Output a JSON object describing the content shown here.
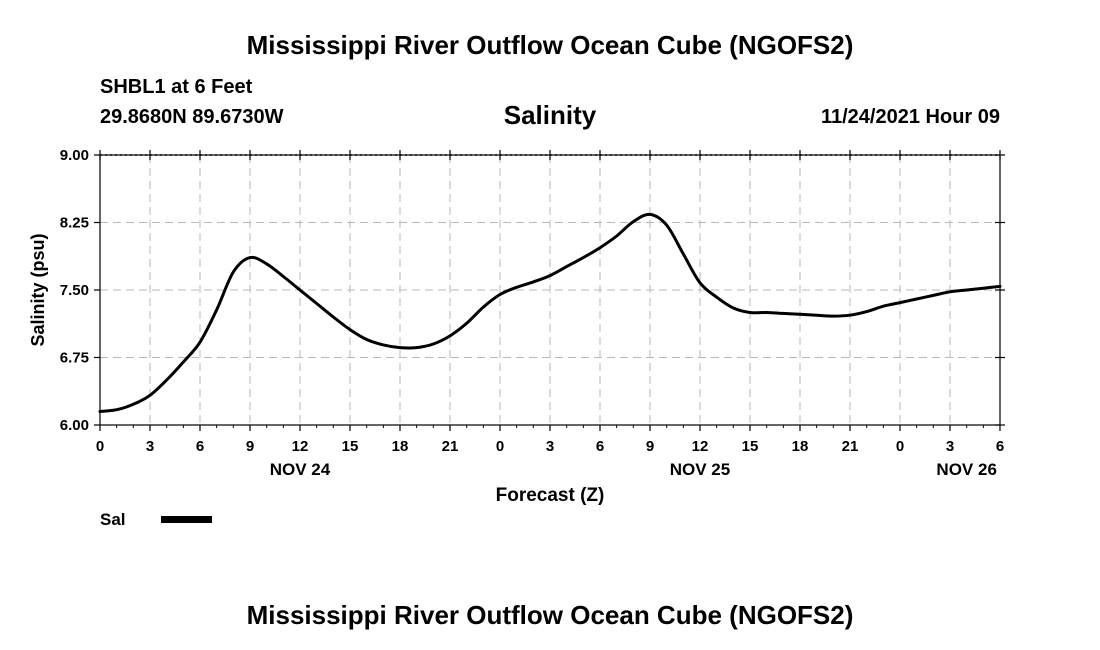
{
  "header": {
    "title": "Mississippi River Outflow Ocean Cube (NGOFS2)",
    "station": "SHBL1 at 6 Feet",
    "coords": "29.8680N  89.6730W",
    "chart_title": "Salinity",
    "timestamp": "11/24/2021 Hour 09"
  },
  "footer": {
    "title": "Mississippi River Outflow Ocean Cube (NGOFS2)"
  },
  "legend": {
    "label": "Sal"
  },
  "colors": {
    "line": "#000000",
    "grid": "#b8b8b8"
  },
  "chart_data": {
    "type": "line",
    "title": "Salinity",
    "xlabel": "Forecast (Z)",
    "ylabel": "Salinity (psu)",
    "x_unit": "hours from NOV 24 00Z",
    "xlim": [
      0,
      54
    ],
    "ylim": [
      6.0,
      9.0
    ],
    "grid": true,
    "x_ticks": [
      0,
      3,
      6,
      9,
      12,
      15,
      18,
      21,
      24,
      27,
      30,
      33,
      36,
      39,
      42,
      45,
      48,
      51,
      54
    ],
    "x_tick_labels": [
      "0",
      "3",
      "6",
      "9",
      "12",
      "15",
      "18",
      "21",
      "0",
      "3",
      "6",
      "9",
      "12",
      "15",
      "18",
      "21",
      "0",
      "3",
      "6"
    ],
    "y_ticks": [
      6.0,
      6.75,
      7.5,
      8.25,
      9.0
    ],
    "y_tick_labels": [
      "6.00",
      "6.75",
      "7.50",
      "8.25",
      "9.00"
    ],
    "date_labels": [
      {
        "x": 12,
        "label": "NOV 24"
      },
      {
        "x": 36,
        "label": "NOV 25"
      },
      {
        "x": 52,
        "label": "NOV 26"
      }
    ],
    "series": [
      {
        "name": "Sal",
        "x": [
          0,
          1,
          2,
          3,
          4,
          5,
          6,
          7,
          8,
          9,
          10,
          11,
          12,
          13,
          14,
          15,
          16,
          17,
          18,
          19,
          20,
          21,
          22,
          23,
          24,
          25,
          26,
          27,
          28,
          29,
          30,
          31,
          32,
          33,
          34,
          35,
          36,
          37,
          38,
          39,
          40,
          41,
          42,
          43,
          44,
          45,
          46,
          47,
          48,
          49,
          50,
          51,
          52,
          53,
          54
        ],
        "values": [
          6.15,
          6.17,
          6.23,
          6.33,
          6.5,
          6.7,
          6.92,
          7.28,
          7.7,
          7.86,
          7.79,
          7.65,
          7.5,
          7.35,
          7.2,
          7.06,
          6.95,
          6.89,
          6.86,
          6.86,
          6.9,
          6.99,
          7.13,
          7.31,
          7.45,
          7.53,
          7.59,
          7.66,
          7.76,
          7.86,
          7.97,
          8.1,
          8.26,
          8.34,
          8.22,
          7.9,
          7.58,
          7.42,
          7.3,
          7.25,
          7.25,
          7.24,
          7.23,
          7.22,
          7.21,
          7.22,
          7.26,
          7.32,
          7.36,
          7.4,
          7.44,
          7.48,
          7.5,
          7.52,
          7.54
        ]
      }
    ]
  }
}
